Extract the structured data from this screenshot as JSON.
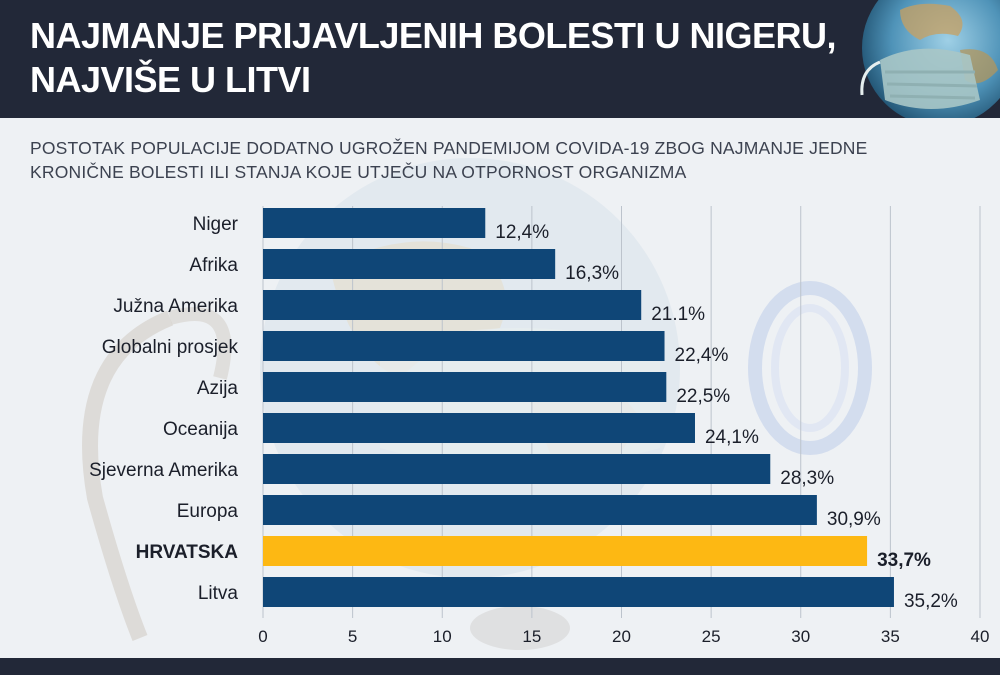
{
  "header": {
    "title_line1": "NAJMANJE PRIJAVLJENIH BOLESTI U NIGERU,",
    "title_line2": "NAJVIŠE U LITVI"
  },
  "chart_data": {
    "type": "bar",
    "orientation": "horizontal",
    "title": "NAJMANJE PRIJAVLJENIH BOLESTI U NIGERU, NAJVIŠE U LITVI",
    "subtitle": "POSTOTAK POPULACIJE DODATNO UGROŽEN PANDEMIJOM COVIDA-19 ZBOG NAJMANJE JEDNE KRONIČNE BOLESTI ILI STANJA KOJE UTJEČU NA OTPORNOST ORGANIZMA",
    "subtitle_line1": "POSTOTAK POPULACIJE DODATNO UGROŽEN PANDEMIJOM COVIDA-19 ZBOG NAJMANJE JEDNE",
    "subtitle_line2": "KRONIČNE BOLESTI ILI STANJA KOJE UTJEČU NA OTPORNOST ORGANIZMA",
    "categories": [
      "Niger",
      "Afrika",
      "Južna Amerika",
      "Globalni prosjek",
      "Azija",
      "Oceanija",
      "Sjeverna Amerika",
      "Europa",
      "HRVATSKA",
      "Litva"
    ],
    "values": [
      12.4,
      16.3,
      21.1,
      22.4,
      22.5,
      24.1,
      28.3,
      30.9,
      33.7,
      35.2
    ],
    "value_labels": [
      "12,4%",
      "16,3%",
      "21.1%",
      "22,4%",
      "22,5%",
      "24,1%",
      "28,3%",
      "30,9%",
      "33,7%",
      "35,2%"
    ],
    "highlight_category": "HRVATSKA",
    "xlim": [
      0,
      40
    ],
    "xticks": [
      0,
      5,
      10,
      15,
      20,
      25,
      30,
      35,
      40
    ],
    "xtick_labels": [
      "0",
      "5",
      "10",
      "15",
      "20",
      "25",
      "30",
      "35",
      "40"
    ],
    "xlabel": "",
    "ylabel": "",
    "grid": "vertical",
    "legend": "none",
    "colors": {
      "bar": "#0f4677",
      "highlight": "#fdb813",
      "grid": "#bcc3cc"
    }
  },
  "colors": {
    "header_bg": "#222838",
    "header_text": "#ffffff",
    "footer_bg": "#222838"
  }
}
